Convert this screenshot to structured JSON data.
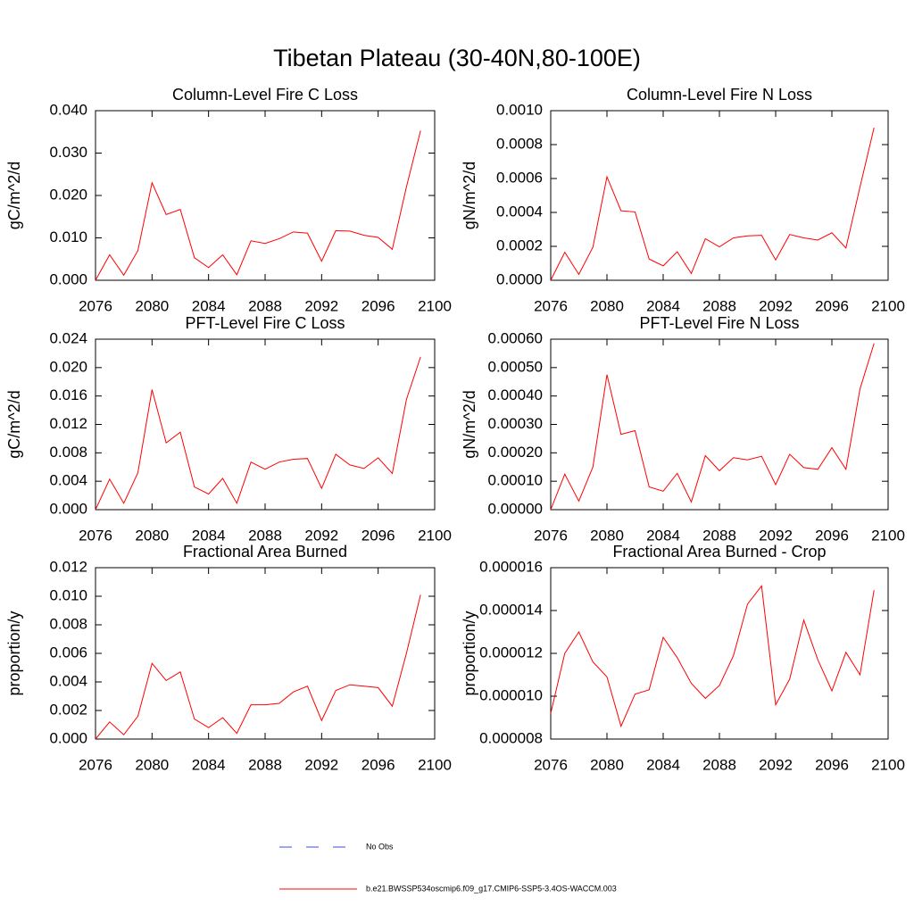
{
  "title": "Tibetan Plateau (30-40N,80-100E)",
  "legend": [
    {
      "name": "No Obs",
      "color": "#3b4fd6",
      "dashed": true
    },
    {
      "name": "b.e21.BWSSP534oscmip6.f09_g17.CMIP6-SSP5-3.4OS-WACCM.003",
      "color": "#ff0000",
      "dashed": false
    }
  ],
  "chart_data": [
    {
      "type": "line",
      "title": "Column-Level Fire C Loss",
      "y_label": "gC/m^2/d",
      "x": [
        2076,
        2077,
        2078,
        2079,
        2080,
        2081,
        2082,
        2083,
        2084,
        2085,
        2086,
        2087,
        2088,
        2089,
        2090,
        2091,
        2092,
        2093,
        2094,
        2095,
        2096,
        2097,
        2098,
        2099
      ],
      "series": [
        {
          "color": "#ff0000",
          "values": [
            0,
            0.006,
            0.0012,
            0.007,
            0.023,
            0.0155,
            0.0167,
            0.0053,
            0.003,
            0.006,
            0.0013,
            0.0093,
            0.0087,
            0.0098,
            0.0114,
            0.0111,
            0.0045,
            0.0117,
            0.0116,
            0.0106,
            0.0101,
            0.0073,
            0.022,
            0.0353
          ]
        }
      ],
      "xlim": [
        2076,
        2100
      ],
      "xticks": [
        2076,
        2080,
        2084,
        2088,
        2092,
        2096,
        2100
      ],
      "ylim": [
        0,
        0.04
      ],
      "yticks": [
        {
          "value": 0,
          "label": "0.000"
        },
        {
          "value": 0.01,
          "label": "0.010"
        },
        {
          "value": 0.02,
          "label": "0.020"
        },
        {
          "value": 0.03,
          "label": "0.030"
        },
        {
          "value": 0.04,
          "label": "0.040"
        }
      ]
    },
    {
      "type": "line",
      "title": "Column-Level Fire N Loss",
      "y_label": "gN/m^2/d",
      "x": [
        2076,
        2077,
        2078,
        2079,
        2080,
        2081,
        2082,
        2083,
        2084,
        2085,
        2086,
        2087,
        2088,
        2089,
        2090,
        2091,
        2092,
        2093,
        2094,
        2095,
        2096,
        2097,
        2098,
        2099
      ],
      "series": [
        {
          "color": "#ff0000",
          "values": [
            0,
            0.000165,
            3.5e-05,
            0.000195,
            0.00061,
            0.00041,
            0.000403,
            0.000125,
            8.5e-05,
            0.000168,
            4e-05,
            0.000245,
            0.000197,
            0.00025,
            0.000262,
            0.000265,
            0.00012,
            0.00027,
            0.00025,
            0.000237,
            0.00028,
            0.00019,
            0.00055,
            0.0009
          ]
        }
      ],
      "xlim": [
        2076,
        2100
      ],
      "xticks": [
        2076,
        2080,
        2084,
        2088,
        2092,
        2096,
        2100
      ],
      "ylim": [
        0,
        0.001
      ],
      "yticks": [
        {
          "value": 0,
          "label": "0.0000"
        },
        {
          "value": 0.0002,
          "label": "0.0002"
        },
        {
          "value": 0.0004,
          "label": "0.0004"
        },
        {
          "value": 0.0006,
          "label": "0.0006"
        },
        {
          "value": 0.0008,
          "label": "0.0008"
        },
        {
          "value": 0.001,
          "label": "0.0010"
        }
      ]
    },
    {
      "type": "line",
      "title": "PFT-Level Fire C Loss",
      "y_label": "gC/m^2/d",
      "x": [
        2076,
        2077,
        2078,
        2079,
        2080,
        2081,
        2082,
        2083,
        2084,
        2085,
        2086,
        2087,
        2088,
        2089,
        2090,
        2091,
        2092,
        2093,
        2094,
        2095,
        2096,
        2097,
        2098,
        2099
      ],
      "series": [
        {
          "color": "#ff0000",
          "values": [
            0,
            0.0043,
            0.0009,
            0.0052,
            0.0169,
            0.0094,
            0.0109,
            0.0032,
            0.0022,
            0.0044,
            0.0009,
            0.0067,
            0.0057,
            0.0067,
            0.0071,
            0.0072,
            0.003,
            0.0078,
            0.0063,
            0.0058,
            0.0073,
            0.0051,
            0.0155,
            0.0215
          ]
        }
      ],
      "xlim": [
        2076,
        2100
      ],
      "xticks": [
        2076,
        2080,
        2084,
        2088,
        2092,
        2096,
        2100
      ],
      "ylim": [
        0,
        0.024
      ],
      "yticks": [
        {
          "value": 0,
          "label": "0.000"
        },
        {
          "value": 0.004,
          "label": "0.004"
        },
        {
          "value": 0.008,
          "label": "0.008"
        },
        {
          "value": 0.012,
          "label": "0.012"
        },
        {
          "value": 0.016,
          "label": "0.016"
        },
        {
          "value": 0.02,
          "label": "0.020"
        },
        {
          "value": 0.024,
          "label": "0.024"
        }
      ]
    },
    {
      "type": "line",
      "title": "PFT-Level Fire N Loss",
      "y_label": "gN/m^2/d",
      "x": [
        2076,
        2077,
        2078,
        2079,
        2080,
        2081,
        2082,
        2083,
        2084,
        2085,
        2086,
        2087,
        2088,
        2089,
        2090,
        2091,
        2092,
        2093,
        2094,
        2095,
        2096,
        2097,
        2098,
        2099
      ],
      "series": [
        {
          "color": "#ff0000",
          "values": [
            0,
            0.000125,
            3e-05,
            0.00015,
            0.000475,
            0.000265,
            0.000278,
            8e-05,
            6.5e-05,
            0.000128,
            2.7e-05,
            0.00019,
            0.000137,
            0.000183,
            0.000175,
            0.000188,
            8.8e-05,
            0.000195,
            0.000148,
            0.000142,
            0.000218,
            0.000142,
            0.000425,
            0.000585
          ]
        }
      ],
      "xlim": [
        2076,
        2100
      ],
      "xticks": [
        2076,
        2080,
        2084,
        2088,
        2092,
        2096,
        2100
      ],
      "ylim": [
        0,
        0.0006
      ],
      "yticks": [
        {
          "value": 0,
          "label": "0.00000"
        },
        {
          "value": 0.0001,
          "label": "0.00010"
        },
        {
          "value": 0.0002,
          "label": "0.00020"
        },
        {
          "value": 0.0003,
          "label": "0.00030"
        },
        {
          "value": 0.0004,
          "label": "0.00040"
        },
        {
          "value": 0.0005,
          "label": "0.00050"
        },
        {
          "value": 0.0006,
          "label": "0.00060"
        }
      ]
    },
    {
      "type": "line",
      "title": "Fractional Area Burned",
      "y_label": "proportion/y",
      "x": [
        2076,
        2077,
        2078,
        2079,
        2080,
        2081,
        2082,
        2083,
        2084,
        2085,
        2086,
        2087,
        2088,
        2089,
        2090,
        2091,
        2092,
        2093,
        2094,
        2095,
        2096,
        2097,
        2098,
        2099
      ],
      "series": [
        {
          "color": "#ff0000",
          "values": [
            0,
            0.0012,
            0.0003,
            0.0016,
            0.0053,
            0.0041,
            0.0047,
            0.0014,
            0.0008,
            0.0015,
            0.0004,
            0.0024,
            0.0024,
            0.0025,
            0.0033,
            0.0037,
            0.0013,
            0.0034,
            0.0038,
            0.0037,
            0.0036,
            0.0023,
            0.006,
            0.0101
          ]
        }
      ],
      "xlim": [
        2076,
        2100
      ],
      "xticks": [
        2076,
        2080,
        2084,
        2088,
        2092,
        2096,
        2100
      ],
      "ylim": [
        0,
        0.012
      ],
      "yticks": [
        {
          "value": 0,
          "label": "0.000"
        },
        {
          "value": 0.002,
          "label": "0.002"
        },
        {
          "value": 0.004,
          "label": "0.004"
        },
        {
          "value": 0.006,
          "label": "0.006"
        },
        {
          "value": 0.008,
          "label": "0.008"
        },
        {
          "value": 0.01,
          "label": "0.010"
        },
        {
          "value": 0.012,
          "label": "0.012"
        }
      ]
    },
    {
      "type": "line",
      "title": "Fractional Area Burned - Crop",
      "y_label": "proportion/y",
      "x": [
        2076,
        2077,
        2078,
        2079,
        2080,
        2081,
        2082,
        2083,
        2084,
        2085,
        2086,
        2087,
        2088,
        2089,
        2090,
        2091,
        2092,
        2093,
        2094,
        2095,
        2096,
        2097,
        2098,
        2099
      ],
      "series": [
        {
          "color": "#ff0000",
          "values": [
            9.2e-06,
            1.2e-05,
            1.3e-05,
            1.16e-05,
            1.09e-05,
            8.6e-06,
            1.01e-05,
            1.03e-05,
            1.275e-05,
            1.18e-05,
            1.06e-05,
            9.9e-06,
            1.05e-05,
            1.19e-05,
            1.43e-05,
            1.515e-05,
            9.6e-06,
            1.08e-05,
            1.355e-05,
            1.17e-05,
            1.025e-05,
            1.205e-05,
            1.1e-05,
            1.495e-05
          ]
        }
      ],
      "xlim": [
        2076,
        2100
      ],
      "xticks": [
        2076,
        2080,
        2084,
        2088,
        2092,
        2096,
        2100
      ],
      "ylim": [
        8e-06,
        1.6e-05
      ],
      "yticks": [
        {
          "value": 8e-06,
          "label": "0.000008"
        },
        {
          "value": 1e-05,
          "label": "0.000010"
        },
        {
          "value": 1.2e-05,
          "label": "0.000012"
        },
        {
          "value": 1.4e-05,
          "label": "0.000014"
        },
        {
          "value": 1.6e-05,
          "label": "0.000016"
        }
      ]
    }
  ]
}
